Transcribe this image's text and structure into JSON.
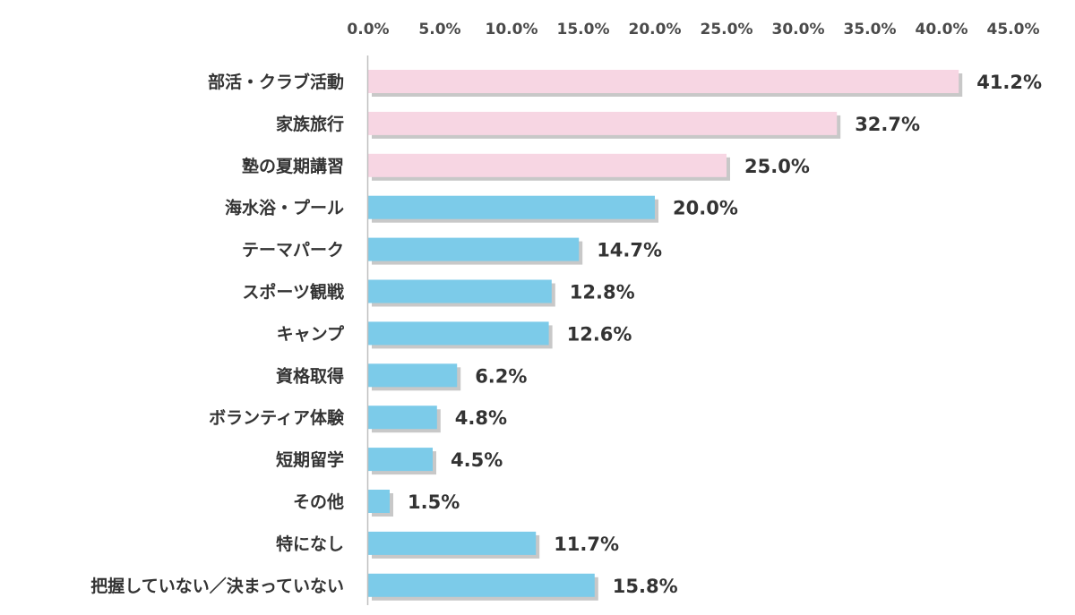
{
  "chart_data": {
    "type": "bar",
    "orientation": "horizontal",
    "title": "",
    "xlabel": "",
    "ylabel": "",
    "xlim": [
      0,
      45
    ],
    "ticks": [
      {
        "value": 0,
        "label": "0.0%"
      },
      {
        "value": 5,
        "label": "5.0%"
      },
      {
        "value": 10,
        "label": "10.0%"
      },
      {
        "value": 15,
        "label": "15.0%"
      },
      {
        "value": 20,
        "label": "20.0%"
      },
      {
        "value": 25,
        "label": "25.0%"
      },
      {
        "value": 30,
        "label": "30.0%"
      },
      {
        "value": 35,
        "label": "35.0%"
      },
      {
        "value": 40,
        "label": "40.0%"
      },
      {
        "value": 45,
        "label": "45.0%"
      }
    ],
    "grid": false,
    "legend": "none",
    "colors": {
      "highlight": "#f7d6e3",
      "normal": "#7ccbe9",
      "shadow": "#c8c8c8",
      "axis": "#bfbfbf"
    },
    "bars": [
      {
        "category": "部活・クラブ活動",
        "value": 41.2,
        "label": "41.2%",
        "highlight": true
      },
      {
        "category": "家族旅行",
        "value": 32.7,
        "label": "32.7%",
        "highlight": true
      },
      {
        "category": "塾の夏期講習",
        "value": 25.0,
        "label": "25.0%",
        "highlight": true
      },
      {
        "category": "海水浴・プール",
        "value": 20.0,
        "label": "20.0%",
        "highlight": false
      },
      {
        "category": "テーマパーク",
        "value": 14.7,
        "label": "14.7%",
        "highlight": false
      },
      {
        "category": "スポーツ観戦",
        "value": 12.8,
        "label": "12.8%",
        "highlight": false
      },
      {
        "category": "キャンプ",
        "value": 12.6,
        "label": "12.6%",
        "highlight": false
      },
      {
        "category": "資格取得",
        "value": 6.2,
        "label": "6.2%",
        "highlight": false
      },
      {
        "category": "ボランティア体験",
        "value": 4.8,
        "label": "4.8%",
        "highlight": false
      },
      {
        "category": "短期留学",
        "value": 4.5,
        "label": "4.5%",
        "highlight": false
      },
      {
        "category": "その他",
        "value": 1.5,
        "label": "1.5%",
        "highlight": false
      },
      {
        "category": "特になし",
        "value": 11.7,
        "label": "11.7%",
        "highlight": false
      },
      {
        "category": "把握していない／決まっていない",
        "value": 15.8,
        "label": "15.8%",
        "highlight": false
      }
    ]
  }
}
